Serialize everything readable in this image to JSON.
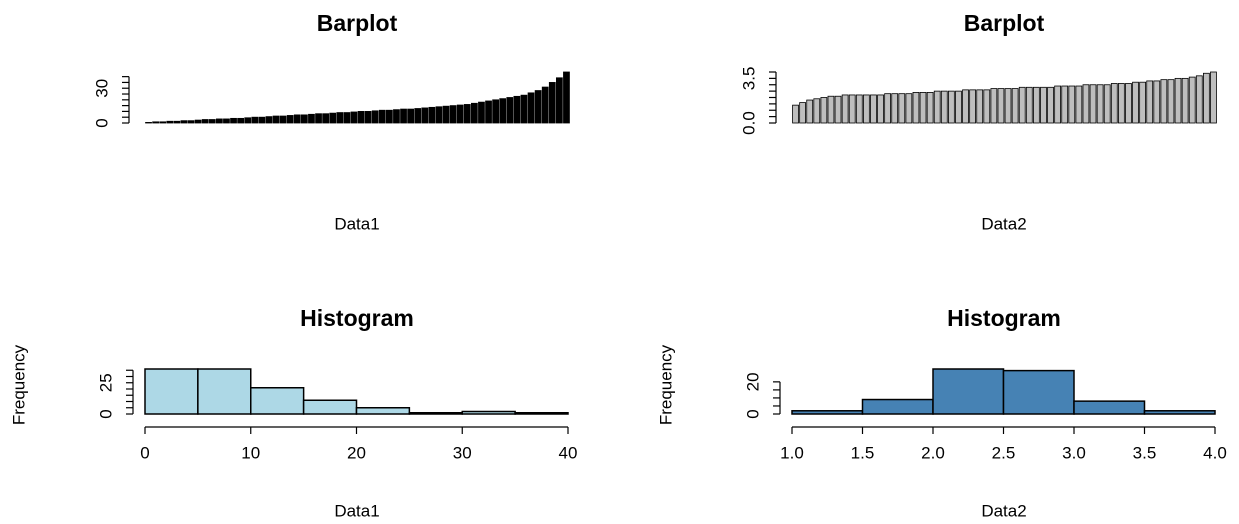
{
  "chart_data": [
    {
      "type": "bar",
      "title": "Barplot",
      "xlabel": "Data1",
      "color": "#000000",
      "values": [
        0.5,
        1,
        1,
        1.5,
        1.5,
        2,
        2,
        2.5,
        3,
        3,
        3.5,
        3.5,
        4,
        4,
        4.5,
        5,
        5,
        5.5,
        6,
        6,
        6.5,
        7,
        7,
        7.5,
        8,
        8,
        8.5,
        9,
        9,
        9.5,
        10,
        10,
        10.5,
        11,
        11,
        11.5,
        12,
        12,
        12.5,
        13,
        13.5,
        14,
        14.5,
        15,
        15.5,
        16,
        17,
        18,
        19,
        20,
        21,
        22,
        23,
        24,
        26,
        28,
        31,
        35,
        39,
        44
      ],
      "ylim": [
        0,
        44
      ],
      "yticks": [
        0,
        30
      ],
      "yticks_minor": [
        5,
        10,
        15,
        20,
        25,
        35,
        40
      ]
    },
    {
      "type": "bar",
      "title": "Barplot",
      "xlabel": "Data2",
      "color": "#bebebe",
      "values": [
        1.4,
        1.6,
        1.8,
        1.9,
        2.0,
        2.1,
        2.1,
        2.2,
        2.2,
        2.2,
        2.2,
        2.2,
        2.2,
        2.3,
        2.3,
        2.3,
        2.3,
        2.4,
        2.4,
        2.4,
        2.5,
        2.5,
        2.5,
        2.5,
        2.6,
        2.6,
        2.6,
        2.6,
        2.7,
        2.7,
        2.7,
        2.7,
        2.8,
        2.8,
        2.8,
        2.8,
        2.8,
        2.9,
        2.9,
        2.9,
        2.9,
        3.0,
        3.0,
        3.0,
        3.0,
        3.1,
        3.1,
        3.1,
        3.2,
        3.2,
        3.3,
        3.3,
        3.4,
        3.4,
        3.5,
        3.5,
        3.6,
        3.7,
        3.9,
        4.0
      ],
      "ylim": [
        0,
        4
      ],
      "yticks": [
        {
          "value": 0,
          "label": "0.0"
        },
        {
          "value": 3.5,
          "label": "3.5"
        }
      ],
      "yticks_minor": [
        0.5,
        1,
        1.5,
        2,
        2.5,
        3,
        4
      ]
    },
    {
      "type": "histogram",
      "title": "Histogram",
      "xlabel": "Data1",
      "ylabel": "Frequency",
      "color": "#add8e6",
      "bins": [
        0,
        5,
        10,
        15,
        20,
        25,
        30,
        35,
        40
      ],
      "values": [
        36,
        36,
        21,
        11,
        5,
        1,
        2,
        1
      ],
      "xlim": [
        0,
        40
      ],
      "xticks": [
        0,
        10,
        20,
        30,
        40
      ],
      "ylim": [
        0,
        36
      ],
      "yticks": [
        0,
        25
      ],
      "yticks_minor": [
        5,
        10,
        15,
        20,
        30,
        35
      ]
    },
    {
      "type": "histogram",
      "title": "Histogram",
      "xlabel": "Data2",
      "ylabel": "Frequency",
      "color": "#4682b4",
      "bins": [
        1,
        1.5,
        2,
        2.5,
        3,
        3.5,
        4
      ],
      "values": [
        2,
        9,
        28,
        27,
        8,
        2
      ],
      "xlim": [
        1,
        4
      ],
      "xticks": [
        {
          "value": 1,
          "label": "1.0"
        },
        1.5,
        {
          "value": 2,
          "label": "2.0"
        },
        2.5,
        {
          "value": 3,
          "label": "3.0"
        },
        3.5,
        {
          "value": 4,
          "label": "4.0"
        }
      ],
      "ylim": [
        0,
        28
      ],
      "yticks": [
        0,
        20
      ],
      "yticks_minor": [
        5,
        10,
        15
      ]
    }
  ]
}
